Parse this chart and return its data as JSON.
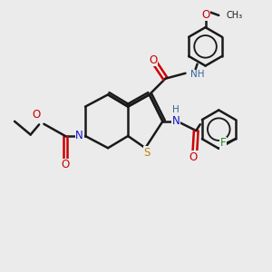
{
  "bg_color": "#ebebeb",
  "bond_color": "#1a1a1a",
  "bond_width": 1.8,
  "figsize": [
    3.0,
    3.0
  ],
  "dpi": 100,
  "colors": {
    "N": "#1111cc",
    "O": "#cc0000",
    "S": "#b8860b",
    "F": "#228b22",
    "NH": "#336699",
    "bond": "#1a1a1a"
  }
}
